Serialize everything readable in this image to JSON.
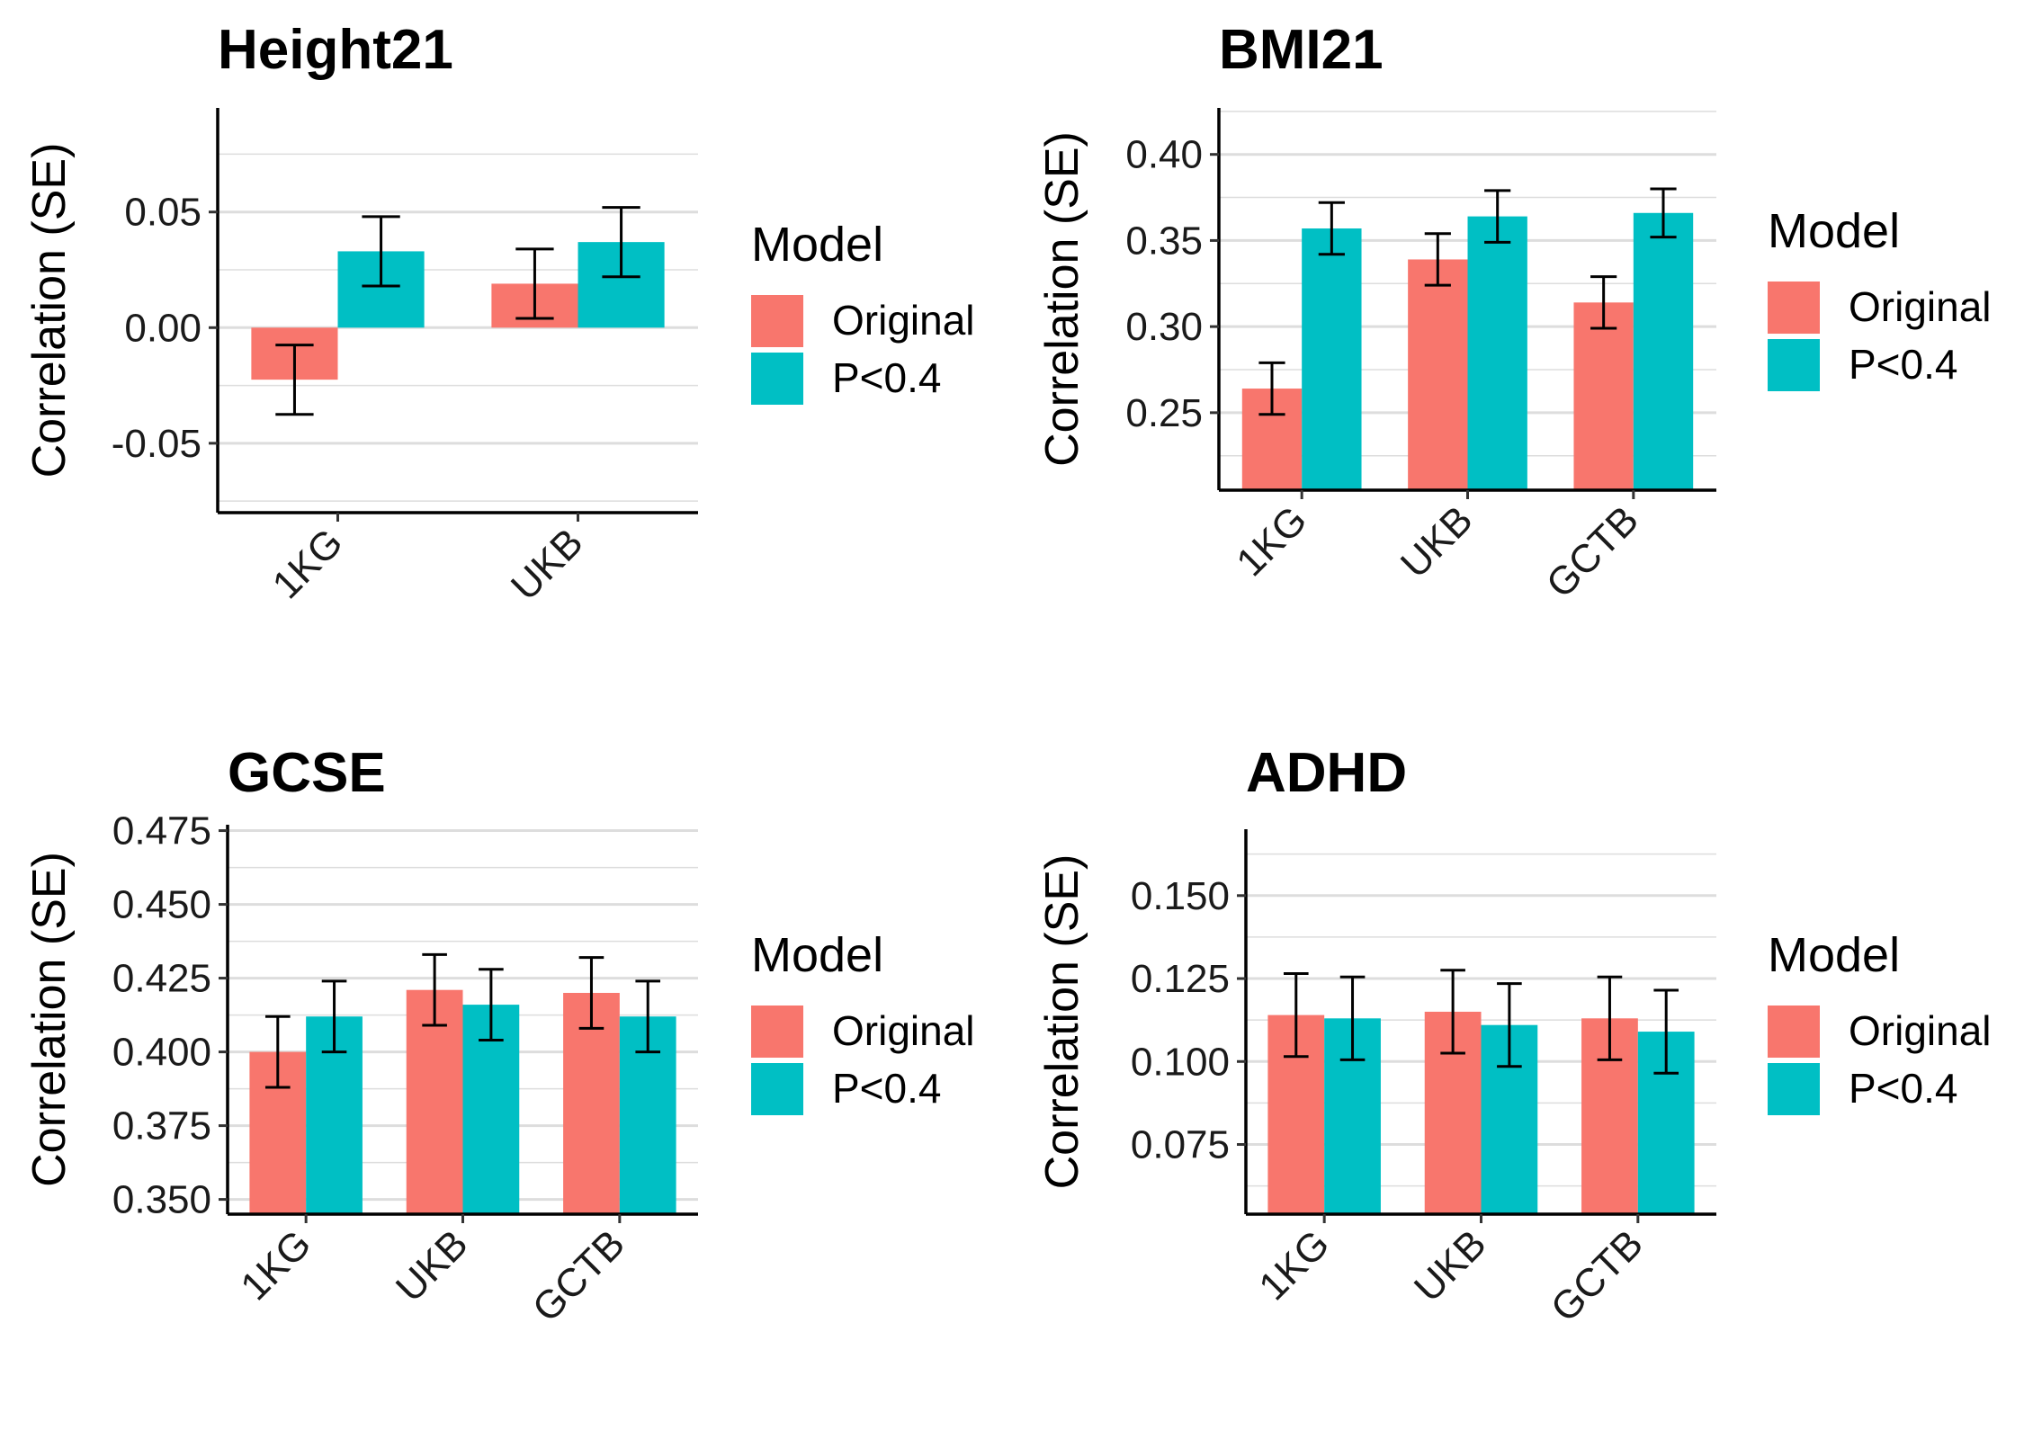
{
  "colors": {
    "original": "#F8766D",
    "p04": "#00BFC4",
    "grid": "#DDDDDD",
    "axis": "#000000"
  },
  "chart_data": [
    {
      "type": "bar",
      "title": "Height21",
      "ylabel": "Correlation (SE)",
      "categories": [
        "1KG",
        "UKB"
      ],
      "ylim": [
        -0.08,
        0.095
      ],
      "yticks": [
        -0.05,
        0.0,
        0.05
      ],
      "ytick_labels": [
        "-0.05",
        "0.00",
        "0.05"
      ],
      "series": [
        {
          "name": "Original",
          "values": [
            -0.0225,
            0.019
          ],
          "err": [
            0.015,
            0.015
          ]
        },
        {
          "name": "P<0.4",
          "values": [
            0.033,
            0.037
          ],
          "err": [
            0.015,
            0.015
          ]
        }
      ],
      "legend": {
        "title": "Model",
        "position": "right"
      },
      "grid": true
    },
    {
      "type": "bar",
      "title": "BMI21",
      "ylabel": "Correlation (SE)",
      "categories": [
        "1KG",
        "UKB",
        "GCTB"
      ],
      "ylim": [
        0.205,
        0.427
      ],
      "yticks": [
        0.25,
        0.3,
        0.35,
        0.4
      ],
      "ytick_labels": [
        "0.25",
        "0.30",
        "0.35",
        "0.40"
      ],
      "series": [
        {
          "name": "Original",
          "values": [
            0.264,
            0.339,
            0.314
          ],
          "err": [
            0.015,
            0.015,
            0.015
          ]
        },
        {
          "name": "P<0.4",
          "values": [
            0.357,
            0.364,
            0.366
          ],
          "err": [
            0.015,
            0.015,
            0.014
          ]
        }
      ],
      "legend": {
        "title": "Model",
        "position": "right"
      },
      "grid": true
    },
    {
      "type": "bar",
      "title": "GCSE",
      "ylabel": "Correlation (SE)",
      "categories": [
        "1KG",
        "UKB",
        "GCTB"
      ],
      "ylim": [
        0.345,
        0.477
      ],
      "yticks": [
        0.35,
        0.375,
        0.4,
        0.425,
        0.45,
        0.475
      ],
      "ytick_labels": [
        "0.350",
        "0.375",
        "0.400",
        "0.425",
        "0.450",
        "0.475"
      ],
      "series": [
        {
          "name": "Original",
          "values": [
            0.4,
            0.421,
            0.42
          ],
          "err": [
            0.012,
            0.012,
            0.012
          ]
        },
        {
          "name": "P<0.4",
          "values": [
            0.412,
            0.416,
            0.412
          ],
          "err": [
            0.012,
            0.012,
            0.012
          ]
        }
      ],
      "legend": {
        "title": "Model",
        "position": "right"
      },
      "grid": true
    },
    {
      "type": "bar",
      "title": "ADHD",
      "ylabel": "Correlation (SE)",
      "categories": [
        "1KG",
        "UKB",
        "GCTB"
      ],
      "ylim": [
        0.054,
        0.17
      ],
      "yticks": [
        0.075,
        0.1,
        0.125,
        0.15
      ],
      "ytick_labels": [
        "0.075",
        "0.100",
        "0.125",
        "0.150"
      ],
      "series": [
        {
          "name": "Original",
          "values": [
            0.114,
            0.115,
            0.113
          ],
          "err": [
            0.0125,
            0.0125,
            0.0125
          ]
        },
        {
          "name": "P<0.4",
          "values": [
            0.113,
            0.111,
            0.109
          ],
          "err": [
            0.0125,
            0.0125,
            0.0125
          ]
        }
      ],
      "legend": {
        "title": "Model",
        "position": "right"
      },
      "grid": true
    }
  ]
}
